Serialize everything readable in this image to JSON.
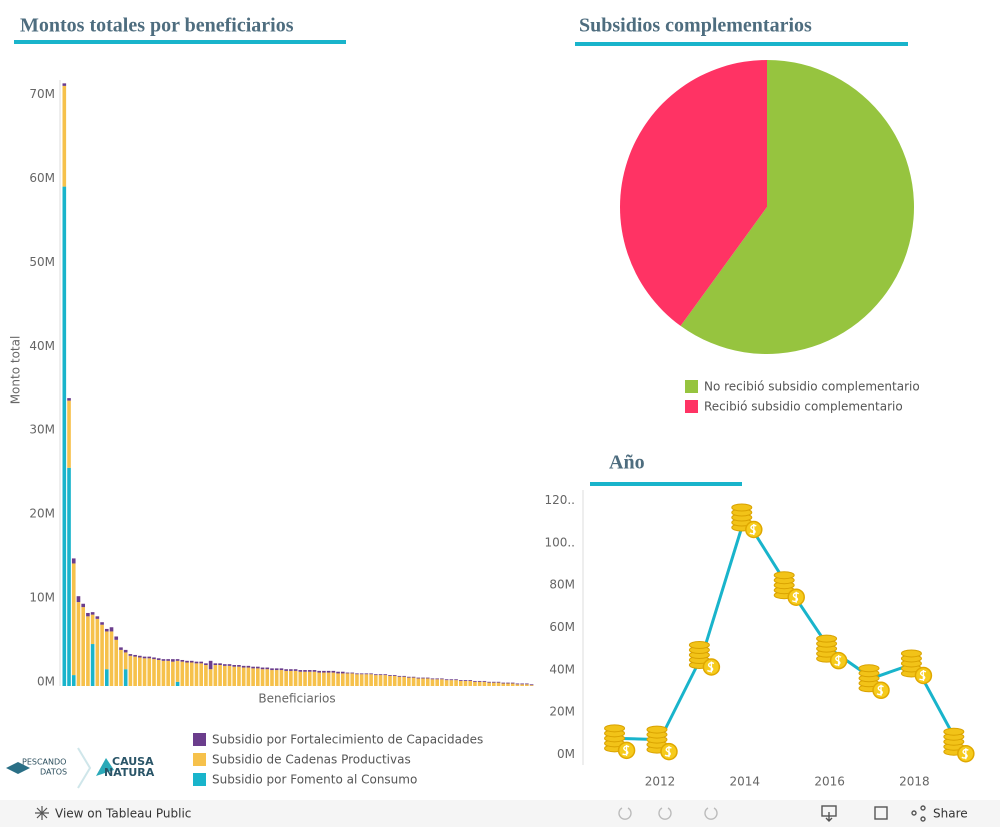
{
  "chart_data": [
    {
      "type": "bar",
      "stacked": true,
      "title": "Montos totales por beneficiarios",
      "ylabel": "Monto total",
      "xlabel": "Beneficiarios",
      "categories": [
        null,
        null,
        null,
        null,
        null,
        null,
        null,
        null,
        null,
        null,
        null,
        null,
        null,
        null,
        null,
        null,
        null,
        null,
        null,
        null,
        null,
        null,
        null,
        null,
        null,
        null,
        null,
        null,
        null,
        null,
        null,
        null,
        null,
        null,
        null,
        null,
        null,
        null,
        null,
        null,
        null,
        null,
        null,
        null,
        null,
        null,
        null,
        null,
        null,
        null,
        null,
        null,
        null,
        null,
        null,
        null,
        null,
        null,
        null,
        null,
        null,
        null,
        null,
        null,
        null,
        null,
        null,
        null,
        null,
        null,
        null,
        null,
        null,
        null,
        null,
        null,
        null,
        null,
        null,
        null,
        null,
        null,
        null,
        null,
        null,
        null,
        null,
        null,
        null,
        null,
        null,
        null,
        null,
        null,
        null,
        null,
        null,
        null,
        null,
        null
      ],
      "series": [
        {
          "name": "Subsidio por Fortalecimiento de Capacidades",
          "color": "#6b3d8c",
          "values": [
            0.3,
            0.3,
            0.6,
            0.7,
            0.4,
            0.4,
            0.3,
            0.3,
            0.3,
            0.3,
            0.5,
            0.4,
            0.3,
            0.3,
            0.2,
            0.2,
            0.2,
            0.2,
            0.2,
            0.2,
            0.2,
            0.2,
            0.2,
            0.3,
            0.2,
            0.2,
            0.2,
            0.2,
            0.2,
            0.2,
            0.2,
            1,
            0.2,
            0.2,
            0.2,
            0.2,
            0.2,
            0.2,
            0.2,
            0.2,
            0.2,
            0.2,
            0.2,
            0.2,
            0.2,
            0.2,
            0.2,
            0.2,
            0.2,
            0.2,
            0.2,
            0.2,
            0.2,
            0.2,
            0.2,
            0.2,
            0.2,
            0.2,
            0.2,
            0.2,
            0.1,
            0.1,
            0.1,
            0.1,
            0.1,
            0.1,
            0.1,
            0.1,
            0.1,
            0.1,
            0.1,
            0.1,
            0.1,
            0.1,
            0.1,
            0.1,
            0.1,
            0.1,
            0.1,
            0.1,
            0.1,
            0.1,
            0.1,
            0.1,
            0.1,
            0.1,
            0.1,
            0.1,
            0.1,
            0.1,
            0.1,
            0.1,
            0.1,
            0.1,
            0.1,
            0.1,
            0.1,
            0.1,
            0.1,
            0.1
          ]
        },
        {
          "name": "Subsidio de Cadenas Productivas",
          "color": "#f6c14b",
          "values": [
            12,
            8,
            13.3,
            10,
            9.4,
            8.3,
            3.5,
            8,
            7.3,
            4.5,
            6.5,
            5.5,
            4.3,
            2,
            3.6,
            3.5,
            3.4,
            3.3,
            3.3,
            3.2,
            3.1,
            3,
            3,
            2.9,
            2.5,
            2.9,
            2.8,
            2.8,
            2.7,
            2.7,
            2.5,
            2,
            2.5,
            2.5,
            2.4,
            2.4,
            2.3,
            2.3,
            2.2,
            2.2,
            2.1,
            2.1,
            2,
            2,
            1.9,
            1.9,
            1.9,
            1.8,
            1.8,
            1.8,
            1.7,
            1.7,
            1.7,
            1.7,
            1.6,
            1.6,
            1.6,
            1.6,
            1.5,
            1.5,
            1.5,
            1.5,
            1.4,
            1.4,
            1.4,
            1.4,
            1.3,
            1.3,
            1.3,
            1.2,
            1.2,
            1.1,
            1.1,
            1,
            1,
            0.9,
            0.9,
            0.9,
            0.8,
            0.8,
            0.8,
            0.7,
            0.7,
            0.7,
            0.6,
            0.6,
            0.6,
            0.5,
            0.5,
            0.5,
            0.4,
            0.4,
            0.4,
            0.3,
            0.3,
            0.3,
            0.2,
            0.2,
            0.2,
            0.1
          ]
        },
        {
          "name": "Subsidio por Fomento al Consumo",
          "color": "#19b4cb",
          "values": [
            59.5,
            26,
            1.3,
            0,
            0,
            0,
            5,
            0,
            0,
            2,
            0,
            0,
            0,
            2,
            0,
            0,
            0,
            0,
            0,
            0,
            0,
            0,
            0,
            0,
            0.5,
            0,
            0,
            0,
            0,
            0,
            0,
            0,
            0,
            0,
            0,
            0,
            0,
            0,
            0,
            0,
            0,
            0,
            0,
            0,
            0,
            0,
            0,
            0,
            0,
            0,
            0,
            0,
            0,
            0,
            0,
            0,
            0,
            0,
            0,
            0,
            0,
            0,
            0,
            0,
            0,
            0,
            0,
            0,
            0,
            0,
            0,
            0,
            0,
            0,
            0,
            0,
            0,
            0,
            0,
            0,
            0,
            0,
            0,
            0,
            0,
            0,
            0,
            0,
            0,
            0,
            0,
            0,
            0,
            0,
            0,
            0,
            0,
            0,
            0,
            0
          ]
        }
      ],
      "ylim": [
        0,
        72.2
      ],
      "yticks": [
        {
          "value": 0,
          "label": "0M"
        },
        {
          "value": 10,
          "label": "10M"
        },
        {
          "value": 20,
          "label": "20M"
        },
        {
          "value": 30,
          "label": "30M"
        },
        {
          "value": 40,
          "label": "40M"
        },
        {
          "value": 50,
          "label": "50M"
        },
        {
          "value": 60,
          "label": "60M"
        },
        {
          "value": 70,
          "label": "70M"
        }
      ]
    },
    {
      "type": "pie",
      "title": "Subsidios complementarios",
      "categories": [
        "No recibió subsidio complementario",
        "Recibió subsidio complementario"
      ],
      "values": [
        60,
        40
      ],
      "colors": [
        "#96c43f",
        "#ff3364"
      ]
    },
    {
      "type": "line",
      "title": "Año",
      "color": "#19b4cb",
      "x": [
        2011,
        2012,
        2013,
        2014,
        2015,
        2016,
        2017,
        2018,
        2019
      ],
      "values": [
        7.6,
        7,
        47,
        112,
        80,
        50,
        36,
        43,
        6
      ],
      "xlim": [
        2010.35,
        2019.9
      ],
      "xticks": [
        2012,
        2014,
        2016,
        2018
      ],
      "ylim": [
        -5,
        125
      ],
      "yticks": [
        {
          "value": 0,
          "label": "0M"
        },
        {
          "value": 20,
          "label": "20M"
        },
        {
          "value": 40,
          "label": "40M"
        },
        {
          "value": 60,
          "label": "60M"
        },
        {
          "value": 80,
          "label": "80M"
        },
        {
          "value": 100,
          "label": "100.."
        },
        {
          "value": 120,
          "label": "120.."
        }
      ]
    }
  ],
  "logos": [
    "PESCANDO",
    "DATOS",
    "CAUSA",
    "NATURA"
  ],
  "toolbar": {
    "view": "View on Tableau Public",
    "share": "Share"
  }
}
